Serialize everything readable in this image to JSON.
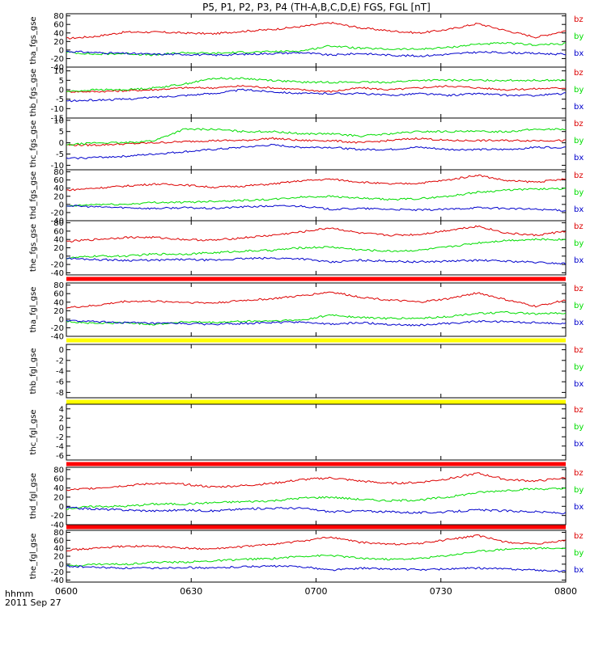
{
  "title": "P5, P1, P2, P3, P4 (TH-A,B,C,D,E) FGS, FGL [nT]",
  "footer": {
    "format_label": "hhmm",
    "date_label": "2011 Sep 27"
  },
  "colors": {
    "bx": "#0000cc",
    "by": "#00dd00",
    "bz": "#dd0000",
    "red_bar": "#ff0000",
    "yellow_bar": "#ffff00"
  },
  "chart_data": {
    "type": "line",
    "x_ticks": [
      "0600",
      "0630",
      "0700",
      "0730",
      "0800"
    ],
    "series_names": [
      "bz",
      "by",
      "bx"
    ],
    "panels": [
      {
        "ylabel": "tha_fgs_gse",
        "yticks": [
          "80",
          "60",
          "40",
          "20",
          "0",
          "-20",
          "-40"
        ],
        "ylim": [
          -40,
          85
        ],
        "series": [
          {
            "name": "bz",
            "values": [
              27,
              32,
              42,
              42,
              40,
              38,
              44,
              48,
              55,
              64,
              52,
              45,
              40,
              48,
              62,
              45,
              30,
              45
            ]
          },
          {
            "name": "by",
            "values": [
              -5,
              -10,
              -8,
              -12,
              -6,
              -8,
              -5,
              -4,
              -2,
              10,
              4,
              2,
              2,
              6,
              14,
              16,
              12,
              15
            ]
          },
          {
            "name": "bx",
            "values": [
              -3,
              -6,
              -8,
              -10,
              -10,
              -12,
              -10,
              -8,
              -6,
              -12,
              -8,
              -12,
              -14,
              -10,
              -5,
              -6,
              -8,
              -10
            ]
          }
        ]
      },
      {
        "ylabel": "thb_fgs_gse",
        "yticks": [
          "10",
          "5",
          "0",
          "-5",
          "-10",
          "-15"
        ],
        "ylim": [
          -15,
          12
        ],
        "series": [
          {
            "name": "bz",
            "values": [
              -1,
              -1,
              -0.5,
              0,
              1,
              1,
              2,
              1,
              0,
              -1,
              1,
              0,
              1,
              2,
              1,
              0,
              0.5,
              1
            ]
          },
          {
            "name": "by",
            "values": [
              -1,
              0,
              0,
              1,
              3,
              6,
              6,
              5,
              4,
              4,
              4,
              4,
              5,
              5,
              5,
              5,
              5,
              5
            ]
          },
          {
            "name": "bx",
            "values": [
              -6,
              -5.5,
              -5,
              -4,
              -3,
              -2,
              0,
              -1,
              -2,
              -2,
              -2,
              -3,
              -2,
              -3,
              -2,
              -3,
              -3,
              -2
            ]
          }
        ]
      },
      {
        "ylabel": "thc_fgs_gse",
        "yticks": [
          "10",
          "5",
          "0",
          "-5",
          "-10"
        ],
        "ylim": [
          -12,
          11
        ],
        "series": [
          {
            "name": "bz",
            "values": [
              -1,
              -1,
              -0.5,
              0,
              0.5,
              1,
              1,
              2,
              1,
              1,
              0,
              1,
              2,
              1,
              1,
              1,
              1,
              1
            ]
          },
          {
            "name": "by",
            "values": [
              -1,
              0,
              0,
              1,
              6,
              6,
              5,
              5,
              4,
              4,
              3,
              4,
              5,
              5,
              5,
              5,
              6,
              6
            ]
          },
          {
            "name": "bx",
            "values": [
              -7,
              -6.5,
              -6,
              -5,
              -4,
              -3,
              -2,
              -1,
              -2,
              -2,
              -3,
              -3,
              -2,
              -3,
              -3,
              -3,
              -2,
              -2
            ]
          }
        ]
      },
      {
        "ylabel": "thd_fgs_gse",
        "yticks": [
          "80",
          "60",
          "40",
          "20",
          "0",
          "-20",
          "-40"
        ],
        "ylim": [
          -40,
          85
        ],
        "series": [
          {
            "name": "bz",
            "values": [
              35,
              40,
              45,
              50,
              48,
              42,
              45,
              50,
              58,
              62,
              55,
              50,
              52,
              60,
              72,
              58,
              55,
              62
            ]
          },
          {
            "name": "by",
            "values": [
              -5,
              0,
              0,
              5,
              5,
              8,
              10,
              12,
              18,
              20,
              15,
              12,
              14,
              20,
              30,
              35,
              38,
              38
            ]
          },
          {
            "name": "bx",
            "values": [
              -3,
              -6,
              -8,
              -10,
              -8,
              -10,
              -6,
              -4,
              -4,
              -12,
              -10,
              -12,
              -14,
              -12,
              -8,
              -10,
              -12,
              -15
            ]
          }
        ]
      },
      {
        "ylabel": "the_fgs_gse",
        "yticks": [
          "80",
          "60",
          "40",
          "20",
          "0",
          "-20",
          "-40"
        ],
        "ylim": [
          -45,
          85
        ],
        "series": [
          {
            "name": "bz",
            "values": [
              35,
              40,
              45,
              45,
              40,
              38,
              44,
              50,
              58,
              68,
              55,
              50,
              52,
              62,
              72,
              55,
              50,
              60
            ]
          },
          {
            "name": "by",
            "values": [
              -5,
              0,
              0,
              5,
              5,
              8,
              12,
              14,
              20,
              22,
              15,
              12,
              14,
              22,
              32,
              38,
              40,
              40
            ]
          },
          {
            "name": "bx",
            "values": [
              -5,
              -8,
              -10,
              -10,
              -8,
              -10,
              -6,
              -5,
              -6,
              -15,
              -10,
              -12,
              -14,
              -12,
              -10,
              -12,
              -15,
              -18
            ]
          }
        ]
      },
      {
        "ylabel": "tha_fgl_gse",
        "yticks": [
          "80",
          "60",
          "40",
          "20",
          "0",
          "-20",
          "-40"
        ],
        "ylim": [
          -40,
          85
        ],
        "series": [
          {
            "name": "bz",
            "values": [
              27,
              32,
              42,
              42,
              40,
              38,
              44,
              48,
              55,
              64,
              52,
              45,
              40,
              48,
              62,
              45,
              30,
              45
            ]
          },
          {
            "name": "by",
            "values": [
              -5,
              -10,
              -8,
              -12,
              -6,
              -8,
              -5,
              -4,
              -2,
              10,
              4,
              2,
              2,
              6,
              14,
              16,
              12,
              15
            ]
          },
          {
            "name": "bx",
            "values": [
              -3,
              -6,
              -8,
              -10,
              -10,
              -12,
              -10,
              -8,
              -6,
              -12,
              -8,
              -12,
              -14,
              -10,
              -5,
              -6,
              -8,
              -10
            ]
          }
        ]
      },
      {
        "ylabel": "thb_fgl_gse",
        "yticks": [
          "0",
          "-2",
          "-4",
          "-6",
          "-8"
        ],
        "ylim": [
          -9,
          1
        ],
        "series": []
      },
      {
        "ylabel": "thc_fgl_gse",
        "yticks": [
          "4",
          "2",
          "0",
          "-2",
          "-4",
          "-6"
        ],
        "ylim": [
          -7,
          5
        ],
        "series": []
      },
      {
        "ylabel": "thd_fgl_gse",
        "yticks": [
          "80",
          "60",
          "40",
          "20",
          "0",
          "-20",
          "-40"
        ],
        "ylim": [
          -40,
          85
        ],
        "series": [
          {
            "name": "bz",
            "values": [
              35,
              40,
              45,
              50,
              48,
              42,
              45,
              50,
              58,
              62,
              55,
              50,
              52,
              60,
              72,
              58,
              55,
              62
            ]
          },
          {
            "name": "by",
            "values": [
              -5,
              0,
              0,
              5,
              5,
              8,
              10,
              12,
              18,
              20,
              15,
              12,
              14,
              20,
              30,
              35,
              38,
              38
            ]
          },
          {
            "name": "bx",
            "values": [
              -3,
              -6,
              -8,
              -10,
              -8,
              -10,
              -6,
              -4,
              -4,
              -12,
              -10,
              -12,
              -14,
              -12,
              -8,
              -10,
              -12,
              -15
            ]
          }
        ]
      },
      {
        "ylabel": "the_fgl_gse",
        "yticks": [
          "80",
          "60",
          "40",
          "20",
          "0",
          "-20",
          "-40"
        ],
        "ylim": [
          -45,
          85
        ],
        "series": [
          {
            "name": "bz",
            "values": [
              35,
              40,
              45,
              45,
              40,
              38,
              44,
              50,
              58,
              68,
              55,
              50,
              52,
              62,
              72,
              55,
              50,
              60
            ]
          },
          {
            "name": "by",
            "values": [
              -5,
              0,
              0,
              5,
              5,
              8,
              12,
              14,
              20,
              22,
              15,
              12,
              14,
              22,
              32,
              38,
              40,
              40
            ]
          },
          {
            "name": "bx",
            "values": [
              -5,
              -8,
              -10,
              -10,
              -8,
              -10,
              -6,
              -5,
              -6,
              -15,
              -10,
              -12,
              -14,
              -12,
              -10,
              -12,
              -15,
              -18
            ]
          }
        ]
      }
    ],
    "separators": [
      "red_bar",
      "yellow_bar",
      "yellow_bar",
      "red_bar",
      "red_bar"
    ]
  }
}
